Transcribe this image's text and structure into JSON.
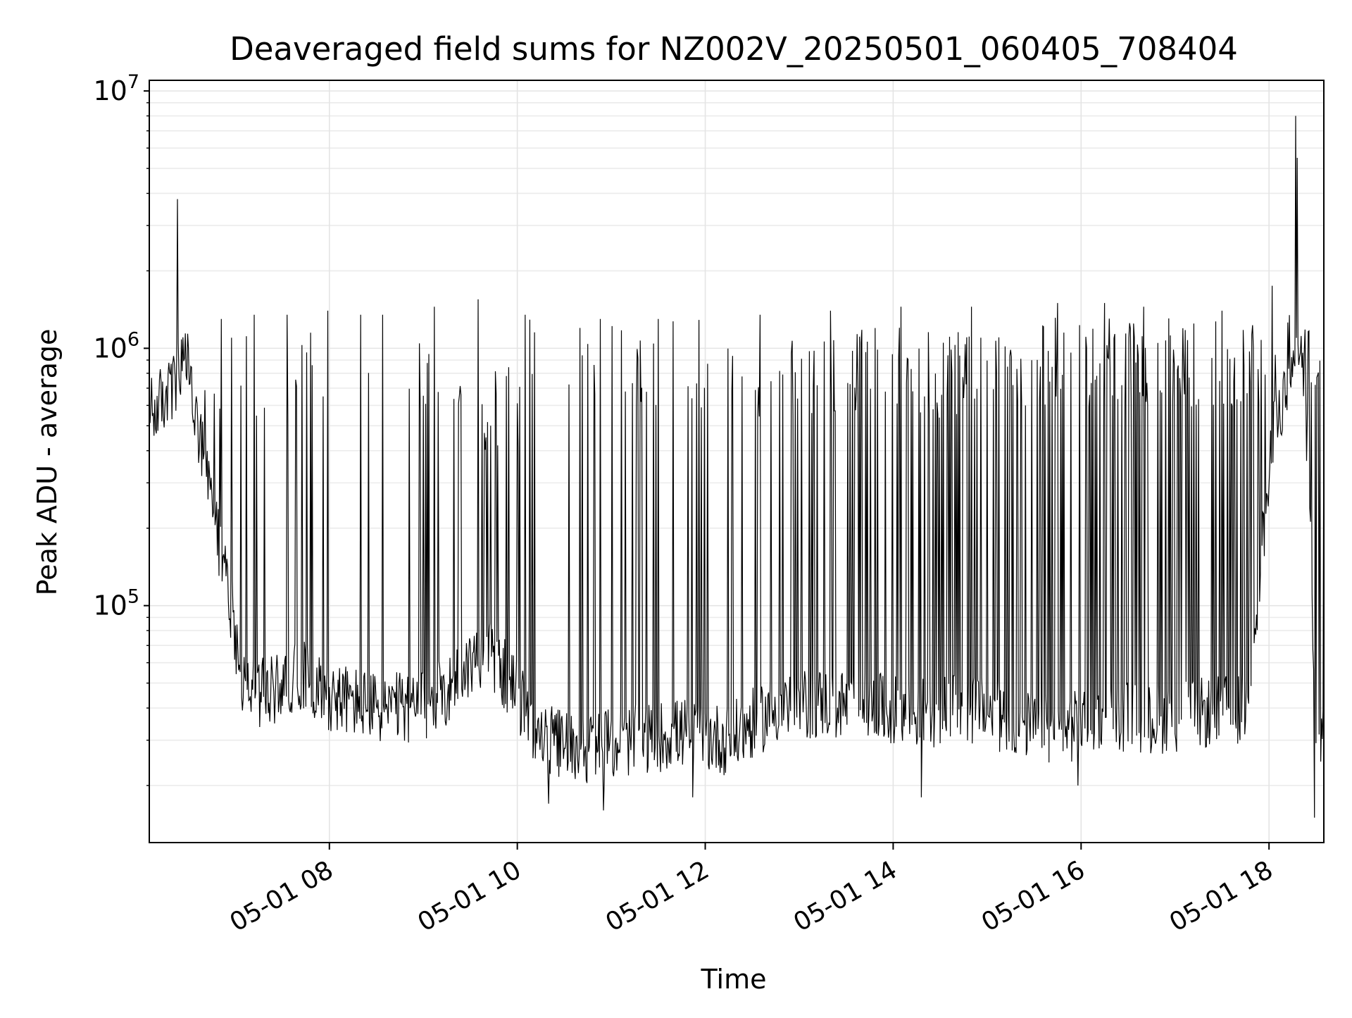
{
  "chart_data": {
    "type": "line",
    "title": "Deaveraged field sums for NZ002V_20250501_060405_708404",
    "xlabel": "Time",
    "ylabel": "Peak ADU - average",
    "x_scale": "time",
    "y_scale": "log",
    "xlim": [
      "2025-05-01 06:05",
      "2025-05-01 18:35"
    ],
    "ylim": [
      12000,
      11000000
    ],
    "x_ticks": [
      {
        "time": "2025-05-01 08:00",
        "label": "05-01 08"
      },
      {
        "time": "2025-05-01 10:00",
        "label": "05-01 10"
      },
      {
        "time": "2025-05-01 12:00",
        "label": "05-01 12"
      },
      {
        "time": "2025-05-01 14:00",
        "label": "05-01 14"
      },
      {
        "time": "2025-05-01 16:00",
        "label": "05-01 16"
      },
      {
        "time": "2025-05-01 18:00",
        "label": "05-01 18"
      }
    ],
    "y_ticks": [
      {
        "value": 100000,
        "base": "10",
        "exp": "5"
      },
      {
        "value": 1000000,
        "base": "10",
        "exp": "6"
      },
      {
        "value": 10000000,
        "base": "10",
        "exp": "7"
      }
    ],
    "grid": true,
    "legend": "none",
    "line_color": "#000000",
    "series": [
      {
        "x": [
          "2025-05-01 06:05",
          "2025-05-01 06:20",
          "2025-05-01 06:30",
          "2025-05-01 06:35",
          "2025-05-01 06:45",
          "2025-05-01 06:55",
          "2025-05-01 07:05",
          "2025-05-01 07:20",
          "2025-05-01 07:40",
          "2025-05-01 08:00",
          "2025-05-01 08:30",
          "2025-05-01 09:00",
          "2025-05-01 09:20",
          "2025-05-01 09:40",
          "2025-05-01 10:00",
          "2025-05-01 10:15",
          "2025-05-01 10:45",
          "2025-05-01 11:15",
          "2025-05-01 11:45",
          "2025-05-01 12:15",
          "2025-05-01 12:45",
          "2025-05-01 13:15",
          "2025-05-01 13:45",
          "2025-05-01 14:15",
          "2025-05-01 14:45",
          "2025-05-01 15:15",
          "2025-05-01 15:45",
          "2025-05-01 16:15",
          "2025-05-01 16:45",
          "2025-05-01 17:15",
          "2025-05-01 17:45",
          "2025-05-01 18:05",
          "2025-05-01 18:15",
          "2025-05-01 18:20",
          "2025-05-01 18:25",
          "2025-05-01 18:30",
          "2025-05-01 18:35"
        ],
        "y": [
          550000,
          700000,
          900000,
          500000,
          250000,
          120000,
          50000,
          45000,
          55000,
          45000,
          40000,
          40000,
          50000,
          70000,
          45000,
          30000,
          28000,
          30000,
          32000,
          30000,
          40000,
          42000,
          40000,
          38000,
          40000,
          36000,
          32000,
          38000,
          36000,
          38000,
          40000,
          600000,
          700000,
          1000000,
          400000,
          25000,
          35000
        ],
        "spikes": [
          {
            "x": "2025-05-01 06:23",
            "y": 3800000
          },
          {
            "x": "2025-05-01 06:51",
            "y": 1300000
          },
          {
            "x": "2025-05-01 07:12",
            "y": 1350000
          },
          {
            "x": "2025-05-01 07:33",
            "y": 1350000
          },
          {
            "x": "2025-05-01 07:59",
            "y": 1400000
          },
          {
            "x": "2025-05-01 08:20",
            "y": 1350000
          },
          {
            "x": "2025-05-01 08:34",
            "y": 1350000
          },
          {
            "x": "2025-05-01 09:07",
            "y": 1450000
          },
          {
            "x": "2025-05-01 09:35",
            "y": 1550000
          },
          {
            "x": "2025-05-01 10:05",
            "y": 1350000
          },
          {
            "x": "2025-05-01 10:40",
            "y": 1200000
          },
          {
            "x": "2025-05-01 11:30",
            "y": 1300000
          },
          {
            "x": "2025-05-01 12:35",
            "y": 1350000
          },
          {
            "x": "2025-05-01 13:20",
            "y": 1400000
          },
          {
            "x": "2025-05-01 14:05",
            "y": 1450000
          },
          {
            "x": "2025-05-01 14:50",
            "y": 1450000
          },
          {
            "x": "2025-05-01 15:45",
            "y": 1500000
          },
          {
            "x": "2025-05-01 16:15",
            "y": 1500000
          },
          {
            "x": "2025-05-01 16:40",
            "y": 1450000
          },
          {
            "x": "2025-05-01 17:30",
            "y": 1400000
          },
          {
            "x": "2025-05-01 18:02",
            "y": 1750000
          },
          {
            "x": "2025-05-01 18:17",
            "y": 8000000
          },
          {
            "x": "2025-05-01 18:18",
            "y": 5500000
          }
        ],
        "dips": [
          {
            "x": "2025-05-01 10:20",
            "y": 17000
          },
          {
            "x": "2025-05-01 10:55",
            "y": 16000
          },
          {
            "x": "2025-05-01 11:52",
            "y": 18000
          },
          {
            "x": "2025-05-01 14:18",
            "y": 18000
          },
          {
            "x": "2025-05-01 15:58",
            "y": 20000
          },
          {
            "x": "2025-05-01 18:29",
            "y": 15000
          }
        ]
      }
    ]
  }
}
